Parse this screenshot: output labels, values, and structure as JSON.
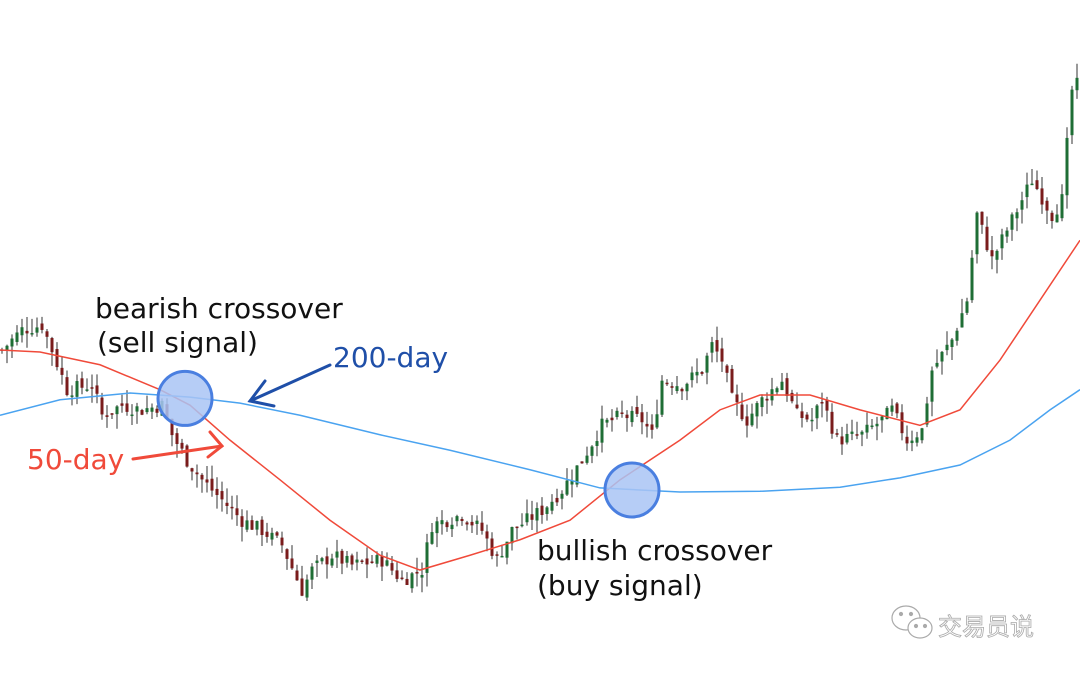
{
  "chart_data": {
    "type": "candlestick",
    "title": "",
    "xlabel": "",
    "ylabel": "",
    "axes_visible": false,
    "grid": false,
    "closes": [
      [
        0,
        48.0
      ],
      [
        4,
        51.0
      ],
      [
        8,
        51.7
      ],
      [
        10,
        48.0
      ],
      [
        13,
        42.1
      ],
      [
        18,
        42.8
      ],
      [
        20,
        38.3
      ],
      [
        24,
        39.8
      ],
      [
        28,
        39.1
      ],
      [
        32,
        39.8
      ],
      [
        34,
        35.4
      ],
      [
        37,
        31.6
      ],
      [
        40,
        28.7
      ],
      [
        44,
        25.7
      ],
      [
        48,
        22.7
      ],
      [
        52,
        21.2
      ],
      [
        56,
        19.0
      ],
      [
        60,
        12.3
      ],
      [
        62,
        15.3
      ],
      [
        66,
        17.5
      ],
      [
        70,
        16.0
      ],
      [
        76,
        16.8
      ],
      [
        80,
        13.8
      ],
      [
        84,
        15.3
      ],
      [
        86,
        22.0
      ],
      [
        92,
        23.5
      ],
      [
        96,
        21.2
      ],
      [
        99,
        16.8
      ],
      [
        102,
        21.2
      ],
      [
        108,
        24.2
      ],
      [
        112,
        27.2
      ],
      [
        116,
        31.6
      ],
      [
        120,
        36.8
      ],
      [
        124,
        38.3
      ],
      [
        128,
        37.6
      ],
      [
        130,
        35.4
      ],
      [
        132,
        43.5
      ],
      [
        136,
        42.8
      ],
      [
        140,
        45.0
      ],
      [
        142,
        48.7
      ],
      [
        144,
        46.5
      ],
      [
        146,
        40.6
      ],
      [
        149,
        37.6
      ],
      [
        152,
        40.6
      ],
      [
        156,
        43.5
      ],
      [
        159,
        38.3
      ],
      [
        162,
        37.6
      ],
      [
        164,
        40.6
      ],
      [
        167,
        34.6
      ],
      [
        172,
        35.4
      ],
      [
        176,
        37.6
      ],
      [
        178,
        39.1
      ],
      [
        181,
        34.6
      ],
      [
        184,
        36.1
      ],
      [
        186,
        45.0
      ],
      [
        190,
        49.5
      ],
      [
        193,
        55.4
      ],
      [
        195,
        68.1
      ],
      [
        198,
        61.4
      ],
      [
        202,
        67.3
      ],
      [
        206,
        73.3
      ],
      [
        210,
        68.1
      ],
      [
        212,
        70.3
      ],
      [
        214,
        86.6
      ],
      [
        216,
        88.1
      ]
    ],
    "series": [
      {
        "name": "50-day",
        "color": "#f04a3a",
        "points": [
          [
            0,
            48.0
          ],
          [
            8,
            47.7
          ],
          [
            20,
            45.8
          ],
          [
            32,
            42.1
          ],
          [
            38,
            39.8
          ],
          [
            46,
            34.6
          ],
          [
            56,
            28.7
          ],
          [
            66,
            22.7
          ],
          [
            76,
            17.5
          ],
          [
            84,
            15.3
          ],
          [
            94,
            17.5
          ],
          [
            104,
            19.8
          ],
          [
            114,
            22.7
          ],
          [
            124,
            28.7
          ],
          [
            136,
            34.6
          ],
          [
            144,
            39.1
          ],
          [
            152,
            41.3
          ],
          [
            162,
            41.3
          ],
          [
            172,
            39.1
          ],
          [
            184,
            36.8
          ],
          [
            192,
            39.1
          ],
          [
            200,
            46.5
          ],
          [
            208,
            55.4
          ],
          [
            216,
            64.3
          ]
        ]
      },
      {
        "name": "200-day",
        "color": "#4aa3f0",
        "points": [
          [
            0,
            38.3
          ],
          [
            12,
            40.6
          ],
          [
            26,
            41.6
          ],
          [
            38,
            41.0
          ],
          [
            48,
            40.1
          ],
          [
            60,
            38.3
          ],
          [
            76,
            35.4
          ],
          [
            90,
            33.1
          ],
          [
            106,
            30.2
          ],
          [
            120,
            27.5
          ],
          [
            136,
            26.9
          ],
          [
            152,
            27.0
          ],
          [
            168,
            27.6
          ],
          [
            180,
            29.0
          ],
          [
            192,
            30.9
          ],
          [
            202,
            34.6
          ],
          [
            210,
            39.1
          ],
          [
            216,
            42.1
          ]
        ]
      }
    ],
    "candle_colors": {
      "up": "#1f6e35",
      "down": "#7a1c1c",
      "wick": "#333333"
    },
    "annotations": {
      "bearish": {
        "line1": "bearish crossover",
        "line2": "(sell signal)",
        "day": 37,
        "price": 40.8
      },
      "bullish": {
        "line1": "bullish crossover",
        "line2": "(buy signal)",
        "day": 126.4,
        "price": 27.2
      },
      "label_200": {
        "text": "200-day",
        "color": "#1f4fa8"
      },
      "label_50": {
        "text": "50-day",
        "color": "#f04a3a"
      },
      "marker_fill": "#a9c4f5",
      "marker_stroke": "#4a7fe0"
    }
  },
  "watermark": {
    "text": "交易员说"
  }
}
